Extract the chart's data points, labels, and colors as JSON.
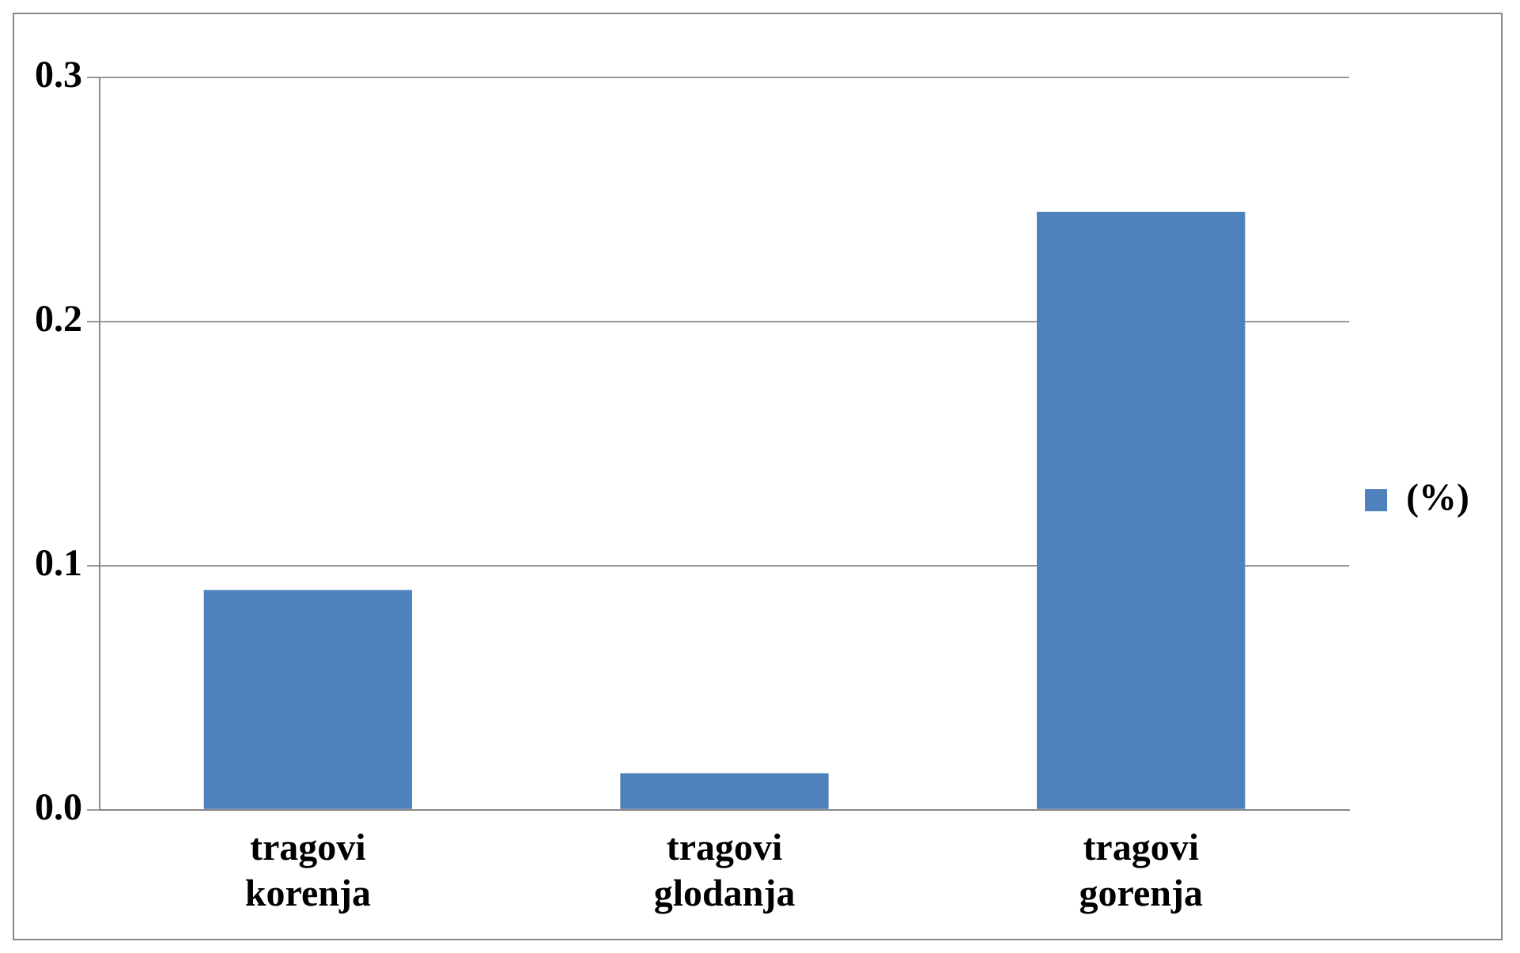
{
  "chart_data": {
    "type": "bar",
    "categories": [
      "tragovi korenja",
      "tragovi glodanja",
      "tragovi gorenja"
    ],
    "series": [
      {
        "name": "(%)",
        "color": "#4f81bd",
        "values": [
          0.09,
          0.015,
          0.245
        ]
      }
    ],
    "ylim": [
      0,
      0.3
    ],
    "yticks": [
      {
        "value": 0,
        "label": "0.0"
      },
      0.1,
      0.2,
      0.3
    ],
    "grid": "y",
    "legend": "right"
  }
}
